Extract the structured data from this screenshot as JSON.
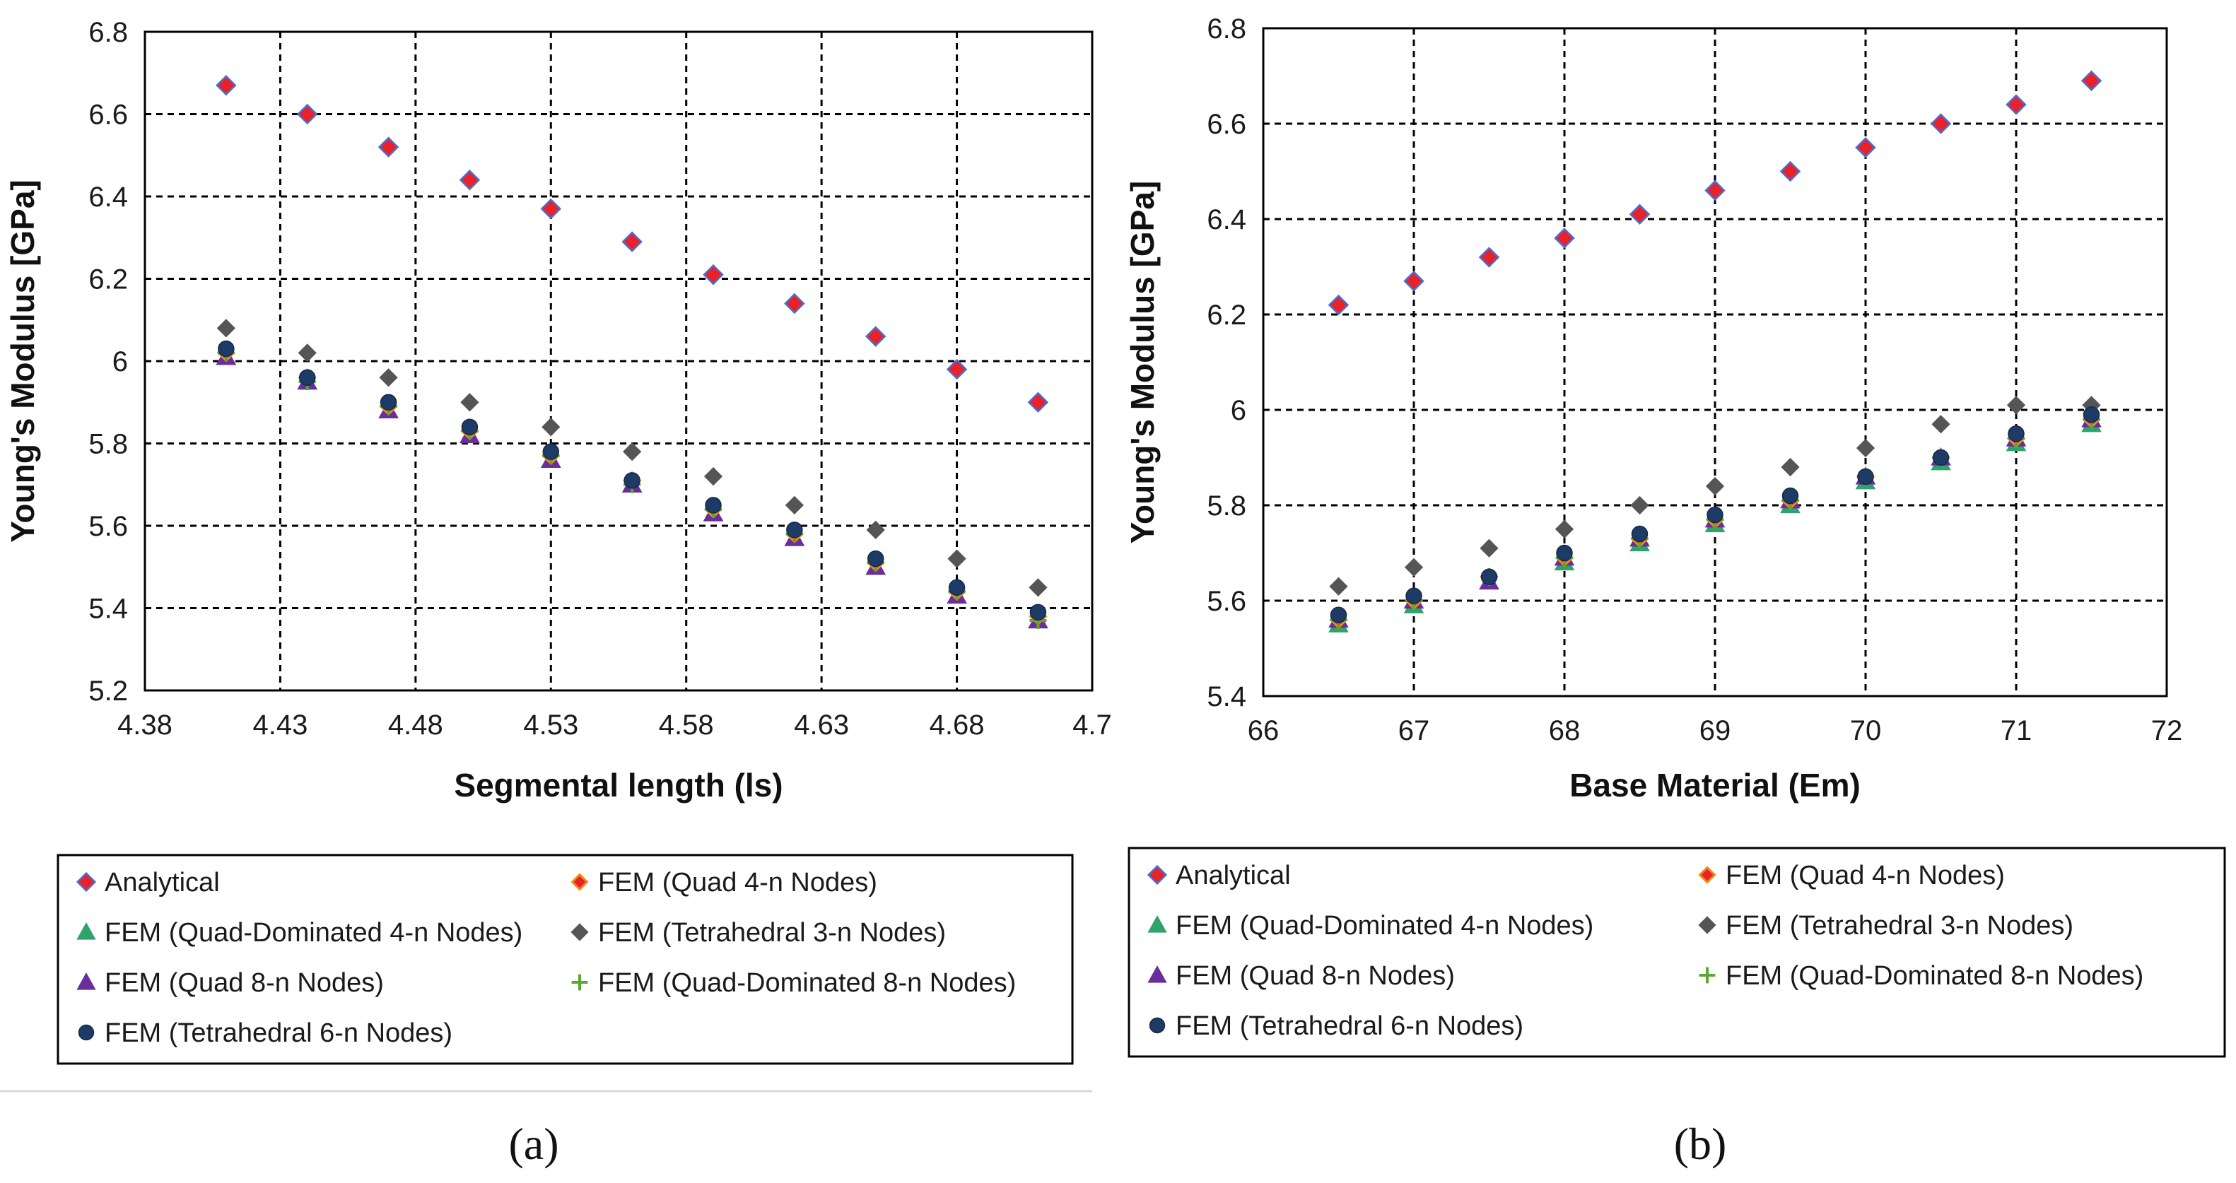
{
  "series_styles": [
    {
      "key": "analytical",
      "marker": "diamond",
      "fill": "#e8212a",
      "stroke": "#4a6fd0"
    },
    {
      "key": "quad4",
      "marker": "diamond-small",
      "fill": "#e8212a",
      "stroke": "#f08a16"
    },
    {
      "key": "qd4",
      "marker": "triangle",
      "fill": "#2ea36b",
      "stroke": "#2ea36b"
    },
    {
      "key": "tet3",
      "marker": "diamond-small",
      "fill": "#555555",
      "stroke": "#555555"
    },
    {
      "key": "quad8",
      "marker": "triangle",
      "fill": "#6a2d9c",
      "stroke": "#6a2d9c"
    },
    {
      "key": "qd8",
      "marker": "plus",
      "fill": "#5aa831",
      "stroke": "#5aa831"
    },
    {
      "key": "tet6",
      "marker": "circle",
      "fill": "#1e3a66",
      "stroke": "#1e3a66"
    }
  ],
  "chart_data": [
    {
      "panel_label": "(a)",
      "type": "scatter",
      "xlabel": "Segmental length (ls)",
      "ylabel": "Young's Modulus [GPa]",
      "xlim": [
        4.38,
        4.73
      ],
      "ylim": [
        5.2,
        6.8
      ],
      "xticks": [
        4.38,
        4.43,
        4.48,
        4.53,
        4.58,
        4.63,
        4.68,
        4.73
      ],
      "xtick_labels": [
        "4.38",
        "4.43",
        "4.48",
        "4.53",
        "4.58",
        "4.63",
        "4.68",
        "4.7"
      ],
      "yticks": [
        5.2,
        5.4,
        5.6,
        5.8,
        6.0,
        6.2,
        6.4,
        6.6,
        6.8
      ],
      "ytick_labels": [
        "5.2",
        "5.4",
        "5.6",
        "5.8",
        "6",
        "6.2",
        "6.4",
        "6.6",
        "6.8"
      ],
      "grid": true,
      "x": [
        4.41,
        4.44,
        4.47,
        4.5,
        4.53,
        4.56,
        4.59,
        4.62,
        4.65,
        4.68,
        4.71
      ],
      "series": [
        {
          "name": "Analytical",
          "key": "analytical",
          "values": [
            6.67,
            6.6,
            6.52,
            6.44,
            6.37,
            6.29,
            6.21,
            6.14,
            6.06,
            5.98,
            5.9
          ]
        },
        {
          "name": "FEM (Quad 4-n Nodes)",
          "key": "quad4",
          "values": [
            6.02,
            5.96,
            5.89,
            5.83,
            5.77,
            5.71,
            5.64,
            5.58,
            5.51,
            5.44,
            5.38
          ]
        },
        {
          "name": "FEM (Quad-Dominated 4-n Nodes)",
          "key": "qd4",
          "values": [
            6.01,
            5.95,
            5.88,
            5.82,
            5.76,
            5.7,
            5.63,
            5.57,
            5.5,
            5.43,
            5.37
          ]
        },
        {
          "name": "FEM (Tetrahedral 3-n Nodes)",
          "key": "tet3",
          "values": [
            6.08,
            6.02,
            5.96,
            5.9,
            5.84,
            5.78,
            5.72,
            5.65,
            5.59,
            5.52,
            5.45
          ]
        },
        {
          "name": "FEM (Quad 8-n Nodes)",
          "key": "quad8",
          "values": [
            6.01,
            5.95,
            5.88,
            5.82,
            5.76,
            5.7,
            5.63,
            5.57,
            5.5,
            5.43,
            5.37
          ]
        },
        {
          "name": "FEM (Quad-Dominated 8-n Nodes)",
          "key": "qd8",
          "values": [
            6.02,
            5.95,
            5.89,
            5.83,
            5.77,
            5.7,
            5.64,
            5.58,
            5.51,
            5.44,
            5.37
          ]
        },
        {
          "name": "FEM (Tetrahedral 6-n Nodes)",
          "key": "tet6",
          "values": [
            6.03,
            5.96,
            5.9,
            5.84,
            5.78,
            5.71,
            5.65,
            5.59,
            5.52,
            5.45,
            5.39
          ]
        }
      ]
    },
    {
      "panel_label": "(b)",
      "type": "scatter",
      "xlabel": "Base Material (Em)",
      "ylabel": "Young's Modulus [GPa]",
      "xlim": [
        66,
        72
      ],
      "ylim": [
        5.4,
        6.8
      ],
      "xticks": [
        66,
        67,
        68,
        69,
        70,
        71,
        72
      ],
      "xtick_labels": [
        "66",
        "67",
        "68",
        "69",
        "70",
        "71",
        "72"
      ],
      "yticks": [
        5.4,
        5.6,
        5.8,
        6.0,
        6.2,
        6.4,
        6.6,
        6.8
      ],
      "ytick_labels": [
        "5.4",
        "5.6",
        "5.8",
        "6",
        "6.2",
        "6.4",
        "6.6",
        "6.8"
      ],
      "grid": true,
      "x": [
        66.5,
        67.0,
        67.5,
        68.0,
        68.5,
        69.0,
        69.5,
        70.0,
        70.5,
        71.0,
        71.5
      ],
      "series": [
        {
          "name": "Analytical",
          "key": "analytical",
          "values": [
            6.22,
            6.27,
            6.32,
            6.36,
            6.41,
            6.46,
            6.5,
            6.55,
            6.6,
            6.64,
            6.69
          ]
        },
        {
          "name": "FEM (Quad 4-n Nodes)",
          "key": "quad4",
          "values": [
            5.56,
            5.6,
            5.65,
            5.69,
            5.73,
            5.77,
            5.81,
            5.86,
            5.9,
            5.94,
            5.98
          ]
        },
        {
          "name": "FEM (Quad-Dominated 4-n Nodes)",
          "key": "qd4",
          "values": [
            5.55,
            5.59,
            5.64,
            5.68,
            5.72,
            5.76,
            5.8,
            5.85,
            5.89,
            5.93,
            5.97
          ]
        },
        {
          "name": "FEM (Tetrahedral 3-n Nodes)",
          "key": "tet3",
          "values": [
            5.63,
            5.67,
            5.71,
            5.75,
            5.8,
            5.84,
            5.88,
            5.92,
            5.97,
            6.01,
            6.01
          ]
        },
        {
          "name": "FEM (Quad 8-n Nodes)",
          "key": "quad8",
          "values": [
            5.56,
            5.6,
            5.64,
            5.69,
            5.73,
            5.77,
            5.81,
            5.86,
            5.9,
            5.94,
            5.98
          ]
        },
        {
          "name": "FEM (Quad-Dominated 8-n Nodes)",
          "key": "qd8",
          "values": [
            5.56,
            5.6,
            5.65,
            5.69,
            5.73,
            5.77,
            5.81,
            5.86,
            5.9,
            5.94,
            5.98
          ]
        },
        {
          "name": "FEM (Tetrahedral 6-n Nodes)",
          "key": "tet6",
          "values": [
            5.57,
            5.61,
            5.65,
            5.7,
            5.74,
            5.78,
            5.82,
            5.86,
            5.9,
            5.95,
            5.99
          ]
        }
      ]
    }
  ]
}
